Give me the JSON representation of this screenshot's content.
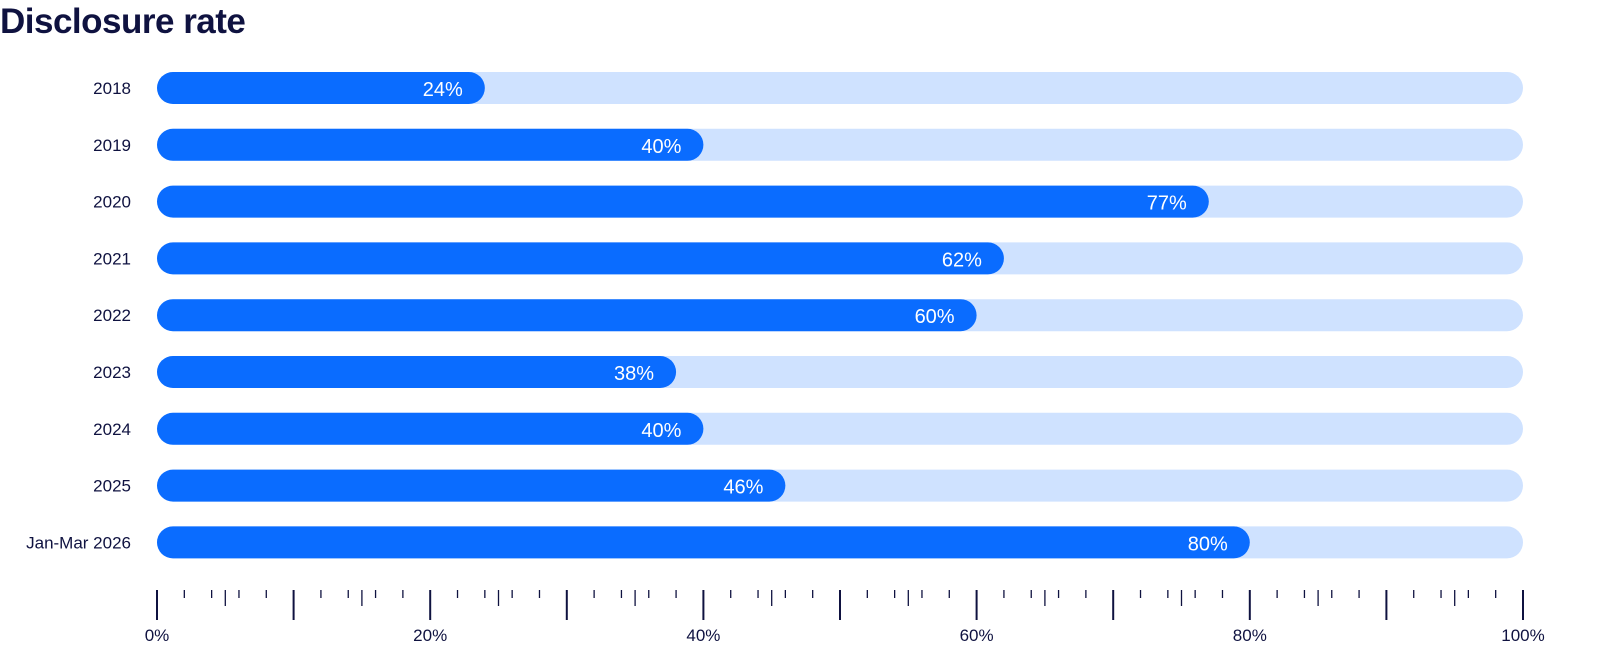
{
  "chart_data": {
    "type": "bar",
    "orientation": "horizontal",
    "title": "Disclosure rate",
    "categories": [
      "2018",
      "2019",
      "2020",
      "2021",
      "2022",
      "2023",
      "2024",
      "2025",
      "Jan-Mar 2026"
    ],
    "values": [
      24,
      40,
      77,
      62,
      60,
      38,
      40,
      46,
      80
    ],
    "value_labels": [
      "24%",
      "40%",
      "77%",
      "62%",
      "60%",
      "38%",
      "40%",
      "46%",
      "80%"
    ],
    "xlim": [
      0,
      100
    ],
    "x_ticks": [
      0,
      20,
      40,
      60,
      80,
      100
    ],
    "x_tick_labels": [
      "0%",
      "20%",
      "40%",
      "60%",
      "80%",
      "100%"
    ],
    "xlabel": "",
    "ylabel": "",
    "grid": false,
    "legend": "none",
    "colors": {
      "bar": "#0a6cff",
      "track": "#cfe2ff",
      "text": "#0f1240",
      "value_text": "#ffffff"
    }
  }
}
